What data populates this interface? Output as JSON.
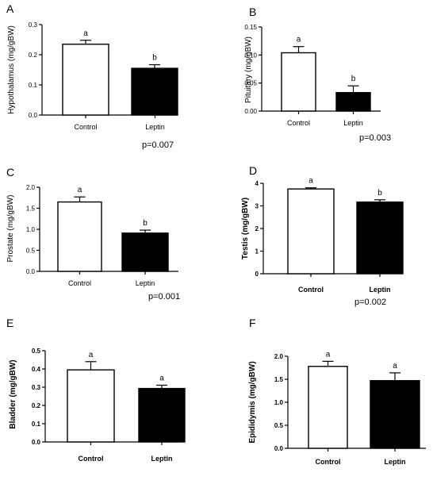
{
  "chart_data": [
    {
      "panel": "A",
      "type": "bar",
      "categories": [
        "Control",
        "Leptin"
      ],
      "values": [
        0.235,
        0.155
      ],
      "errors": [
        0.013,
        0.012
      ],
      "significance": [
        "a",
        "b"
      ],
      "bar_colors": [
        "#ffffff",
        "#000000"
      ],
      "ylabel": "Hypothalamus (mg/gBW)",
      "ylim": [
        0,
        0.3
      ],
      "yticks": [
        "0.0",
        "0.1",
        "0.2",
        "0.3"
      ],
      "p_value": "p=0.007",
      "grid": false
    },
    {
      "panel": "B",
      "type": "bar",
      "categories": [
        "Control",
        "Leptin"
      ],
      "values": [
        0.104,
        0.033
      ],
      "errors": [
        0.011,
        0.012
      ],
      "significance": [
        "a",
        "b"
      ],
      "bar_colors": [
        "#ffffff",
        "#000000"
      ],
      "ylabel": "Pituitary (mg/gBW)",
      "ylim": [
        0,
        0.15
      ],
      "yticks": [
        "0.00",
        "0.05",
        "0.10",
        "0.15"
      ],
      "p_value": "p=0.003",
      "grid": false
    },
    {
      "panel": "C",
      "type": "bar",
      "categories": [
        "Control",
        "Leptin"
      ],
      "values": [
        1.65,
        0.91
      ],
      "errors": [
        0.12,
        0.07
      ],
      "significance": [
        "a",
        "b"
      ],
      "bar_colors": [
        "#ffffff",
        "#000000"
      ],
      "ylabel": "Prostate (mg/gBW)",
      "ylim": [
        0,
        2.0
      ],
      "yticks": [
        "0.0",
        "0.5",
        "1.0",
        "1.5",
        "2.0"
      ],
      "p_value": "p=0.001",
      "grid": false
    },
    {
      "panel": "D",
      "type": "bar",
      "categories": [
        "Control",
        "Leptin"
      ],
      "values": [
        3.75,
        3.17
      ],
      "errors": [
        0.05,
        0.1
      ],
      "significance": [
        "a",
        "b"
      ],
      "bar_colors": [
        "#ffffff",
        "#000000"
      ],
      "ylabel": "Testis (mg/gBW)",
      "ylim": [
        0,
        4
      ],
      "yticks": [
        "0",
        "1",
        "2",
        "3",
        "4"
      ],
      "p_value": "p=0.002",
      "grid": false
    },
    {
      "panel": "E",
      "type": "bar",
      "categories": [
        "Control",
        "Leptin"
      ],
      "values": [
        0.395,
        0.293
      ],
      "errors": [
        0.045,
        0.018
      ],
      "significance": [
        "a",
        "a"
      ],
      "bar_colors": [
        "#ffffff",
        "#000000"
      ],
      "ylabel": "Bladder (mg/gBW)",
      "ylim": [
        0,
        0.5
      ],
      "yticks": [
        "0.0",
        "0.1",
        "0.2",
        "0.3",
        "0.4",
        "0.5"
      ],
      "p_value": "",
      "grid": false
    },
    {
      "panel": "F",
      "type": "bar",
      "categories": [
        "Control",
        "Leptin"
      ],
      "values": [
        1.78,
        1.47
      ],
      "errors": [
        0.11,
        0.17
      ],
      "significance": [
        "a",
        "a"
      ],
      "bar_colors": [
        "#ffffff",
        "#000000"
      ],
      "ylabel": "Epididymis (mg/gBW)",
      "ylim": [
        0,
        2.0
      ],
      "yticks": [
        "0.0",
        "0.5",
        "1.0",
        "1.5",
        "2.0"
      ],
      "p_value": "",
      "grid": false
    }
  ]
}
